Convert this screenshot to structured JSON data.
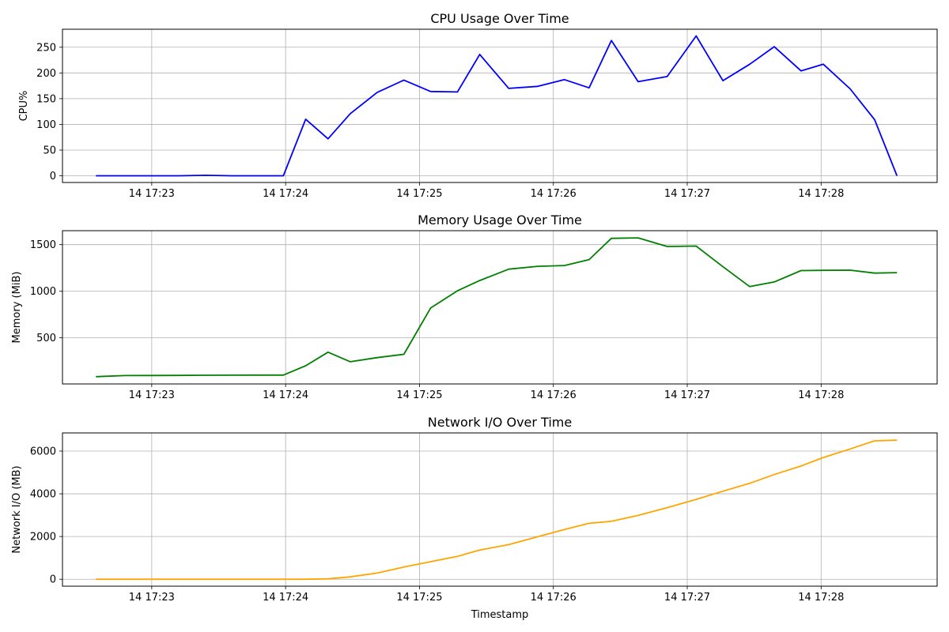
{
  "chart_data": [
    {
      "type": "line",
      "title": "CPU Usage Over Time",
      "xlabel": "",
      "ylabel": "CPU%",
      "grid": true,
      "x_ticks": [
        "14 17:23",
        "14 17:24",
        "14 17:25",
        "14 17:26",
        "14 17:27",
        "14 17:28"
      ],
      "y_ticks": [
        0,
        50,
        100,
        150,
        200,
        250
      ],
      "ylim": [
        -13,
        285
      ],
      "xlim": [
        "17:22:20",
        "17:28:52"
      ],
      "series": [
        {
          "color": "#0000ff",
          "x": [
            "17:22:35",
            "17:22:48",
            "17:23:00",
            "17:23:12",
            "17:23:24",
            "17:23:36",
            "17:23:48",
            "17:23:59",
            "17:24:09",
            "17:24:19",
            "17:24:29",
            "17:24:41",
            "17:24:53",
            "17:25:05",
            "17:25:17",
            "17:25:27",
            "17:25:40",
            "17:25:53",
            "17:26:05",
            "17:26:16",
            "17:26:26",
            "17:26:38",
            "17:26:51",
            "17:27:04",
            "17:27:16",
            "17:27:28",
            "17:27:39",
            "17:27:51",
            "17:28:01",
            "17:28:13",
            "17:28:24",
            "17:28:34"
          ],
          "y": [
            0,
            0,
            0,
            0,
            1,
            0,
            0,
            0,
            110,
            72,
            121,
            162,
            186,
            164,
            163,
            236,
            170,
            174,
            187,
            171,
            263,
            183,
            193,
            272,
            185,
            217,
            251,
            204,
            217,
            169,
            109,
            0
          ]
        }
      ]
    },
    {
      "type": "line",
      "title": "Memory Usage Over Time",
      "xlabel": "",
      "ylabel": "Memory (MiB)",
      "grid": true,
      "x_ticks": [
        "14 17:23",
        "14 17:24",
        "14 17:25",
        "14 17:26",
        "14 17:27",
        "14 17:28"
      ],
      "y_ticks": [
        500,
        1000,
        1500
      ],
      "ylim": [
        5,
        1650
      ],
      "xlim": [
        "17:22:20",
        "17:28:52"
      ],
      "series": [
        {
          "color": "#008000",
          "x": [
            "17:22:35",
            "17:22:48",
            "17:23:00",
            "17:23:12",
            "17:23:24",
            "17:23:36",
            "17:23:48",
            "17:23:59",
            "17:24:09",
            "17:24:19",
            "17:24:29",
            "17:24:41",
            "17:24:53",
            "17:25:05",
            "17:25:17",
            "17:25:27",
            "17:25:40",
            "17:25:53",
            "17:26:05",
            "17:26:16",
            "17:26:26",
            "17:26:38",
            "17:26:51",
            "17:27:04",
            "17:27:16",
            "17:27:28",
            "17:27:39",
            "17:27:51",
            "17:28:01",
            "17:28:13",
            "17:28:24",
            "17:28:34"
          ],
          "y": [
            83,
            95,
            96,
            97,
            98,
            99,
            100,
            100,
            200,
            346,
            243,
            287,
            323,
            820,
            1005,
            1115,
            1237,
            1268,
            1276,
            1340,
            1568,
            1573,
            1480,
            1485,
            1263,
            1050,
            1100,
            1222,
            1224,
            1226,
            1195,
            1200
          ]
        }
      ]
    },
    {
      "type": "line",
      "title": "Network I/O Over Time",
      "xlabel": "Timestamp",
      "ylabel": "Network I/O (MB)",
      "grid": true,
      "x_ticks": [
        "14 17:23",
        "14 17:24",
        "14 17:25",
        "14 17:26",
        "14 17:27",
        "14 17:28"
      ],
      "y_ticks": [
        0,
        2000,
        4000,
        6000
      ],
      "ylim": [
        -325,
        6850
      ],
      "xlim": [
        "17:22:20",
        "17:28:52"
      ],
      "series": [
        {
          "color": "#ffa500",
          "x": [
            "17:22:35",
            "17:22:48",
            "17:23:00",
            "17:23:12",
            "17:23:24",
            "17:23:36",
            "17:23:48",
            "17:23:59",
            "17:24:09",
            "17:24:19",
            "17:24:29",
            "17:24:41",
            "17:24:53",
            "17:25:05",
            "17:25:17",
            "17:25:27",
            "17:25:40",
            "17:25:53",
            "17:26:05",
            "17:26:16",
            "17:26:26",
            "17:26:38",
            "17:26:51",
            "17:27:04",
            "17:27:16",
            "17:27:28",
            "17:27:39",
            "17:27:51",
            "17:28:01",
            "17:28:13",
            "17:28:24",
            "17:28:34"
          ],
          "y": [
            0,
            0,
            0,
            0,
            0,
            0,
            0,
            0,
            0,
            20,
            110,
            290,
            570,
            820,
            1070,
            1370,
            1620,
            1990,
            2330,
            2620,
            2710,
            2990,
            3350,
            3740,
            4120,
            4490,
            4900,
            5300,
            5700,
            6100,
            6480,
            6510
          ]
        }
      ]
    }
  ]
}
